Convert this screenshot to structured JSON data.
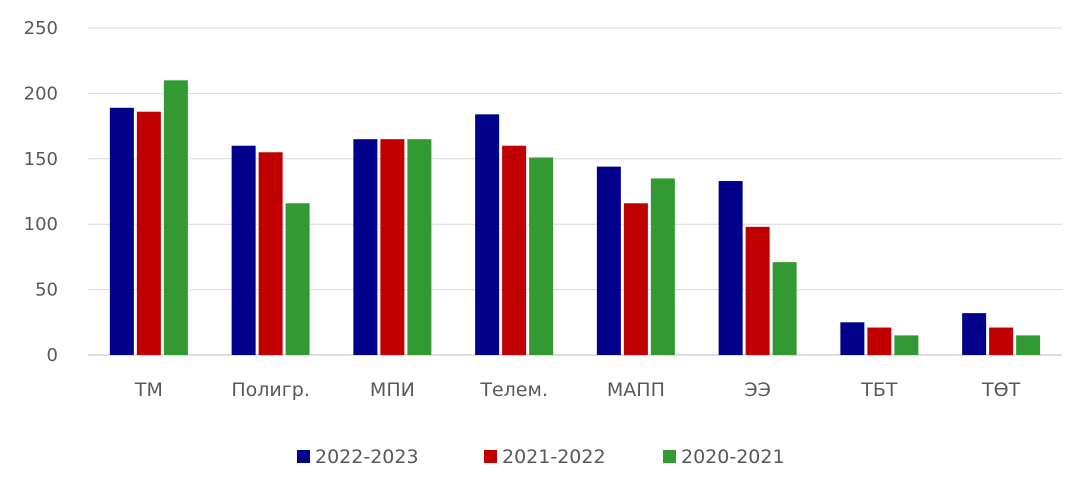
{
  "chart_data": {
    "type": "bar",
    "categories": [
      "ТМ",
      "Полигр.",
      "МПИ",
      "Телем.",
      "МАПП",
      "ЭЭ",
      "ТБТ",
      "ТӨТ"
    ],
    "series": [
      {
        "name": "2022-2023",
        "color": "#00008B",
        "values": [
          189,
          160,
          165,
          184,
          144,
          133,
          25,
          32
        ]
      },
      {
        "name": "2021-2022",
        "color": "#C00000",
        "values": [
          186,
          155,
          165,
          160,
          116,
          98,
          21,
          21
        ]
      },
      {
        "name": "2020-2021",
        "color": "#339933",
        "values": [
          210,
          116,
          165,
          151,
          135,
          71,
          15,
          15
        ]
      }
    ],
    "yticks": [
      "0",
      "50",
      "100",
      "150",
      "200",
      "250"
    ],
    "ylim": [
      0,
      250
    ],
    "grid": true,
    "legend": "bottom"
  }
}
